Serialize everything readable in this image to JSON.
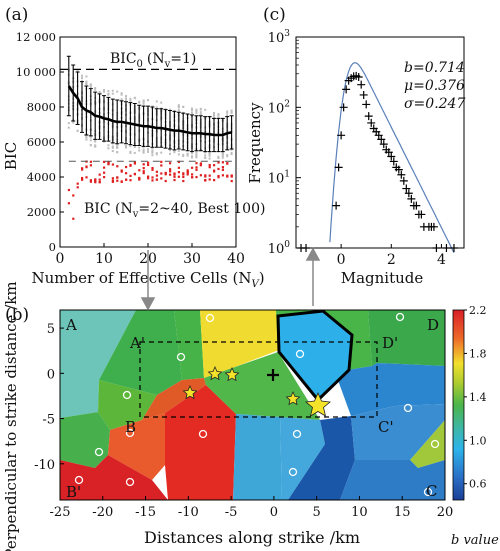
{
  "chart_data": [
    {
      "panel_label": "(a)",
      "type": "scatter",
      "xlabel": "Number of Effective Cells (N",
      "xlabel_sub": "V",
      "xlabel_end": ")",
      "ylabel": "BIC",
      "xlim": [
        0,
        40
      ],
      "ylim": [
        0,
        12000
      ],
      "xticks": [
        0,
        10,
        20,
        30,
        40
      ],
      "yticks": [
        0,
        2000,
        4000,
        6000,
        8000,
        10000,
        12000
      ],
      "ytick_labels": [
        "0",
        "2000",
        "4000",
        "6000",
        "8000",
        "10 000",
        "12 000"
      ],
      "annotations": {
        "bic0_label": "BIC",
        "bic0_sub": "0",
        "bic0_cond": "(N",
        "bic0_cond_sub": "v",
        "bic0_cond_end": "=1)",
        "best_label": "BIC (N",
        "best_sub": "v",
        "best_end": "=2~40, Best 100)"
      },
      "bic0_value": 10150,
      "best_threshold": 4900,
      "mean_series": {
        "x": [
          2,
          3,
          4,
          5,
          6,
          7,
          8,
          9,
          10,
          11,
          12,
          13,
          14,
          15,
          16,
          17,
          18,
          19,
          20,
          21,
          22,
          23,
          24,
          25,
          26,
          27,
          28,
          29,
          30,
          31,
          32,
          33,
          34,
          35,
          36,
          37,
          38,
          39
        ],
        "y": [
          9200,
          8800,
          8500,
          8000,
          7800,
          7700,
          7500,
          7450,
          7350,
          7300,
          7200,
          7150,
          7150,
          7100,
          7050,
          7000,
          6950,
          6900,
          6900,
          6850,
          6800,
          6800,
          6750,
          6700,
          6650,
          6650,
          6600,
          6550,
          6500,
          6500,
          6500,
          6450,
          6450,
          6400,
          6400,
          6400,
          6500,
          6550
        ],
        "sd": [
          1700,
          1600,
          1500,
          1450,
          1400,
          1350,
          1350,
          1300,
          1300,
          1250,
          1250,
          1250,
          1200,
          1200,
          1200,
          1200,
          1150,
          1150,
          1150,
          1150,
          1100,
          1100,
          1100,
          1100,
          1100,
          1050,
          1050,
          1050,
          1050,
          1000,
          1000,
          1000,
          1000,
          950,
          950,
          950,
          950,
          950
        ]
      }
    },
    {
      "panel_label": "(c)",
      "type": "scatter",
      "xlabel": "Magnitude",
      "ylabel": "Frequency",
      "xlim": [
        -1.8,
        4.9
      ],
      "ylim_log": [
        0,
        3
      ],
      "yscale": "log",
      "xticks": [
        0,
        2,
        4
      ],
      "yticks_exp": [
        0,
        1,
        2,
        3
      ],
      "stats": {
        "b": "b=0.714",
        "mu": "μ=0.376",
        "sigma": "σ=0.247"
      },
      "observed": {
        "x": [
          -1.6,
          -1.4,
          -0.2,
          -0.1,
          0.0,
          0.1,
          0.2,
          0.3,
          0.4,
          0.5,
          0.6,
          0.7,
          0.8,
          0.9,
          1.0,
          1.1,
          1.2,
          1.3,
          1.4,
          1.5,
          1.6,
          1.7,
          1.8,
          1.9,
          2.0,
          2.1,
          2.2,
          2.3,
          2.4,
          2.5,
          2.6,
          2.7,
          2.8,
          2.9,
          3.0,
          3.1,
          3.2,
          3.3,
          3.5,
          3.6,
          3.7,
          3.8,
          4.2,
          4.5
        ],
        "y": [
          1,
          1,
          4,
          14,
          40,
          100,
          180,
          240,
          260,
          275,
          280,
          270,
          210,
          150,
          110,
          75,
          60,
          50,
          45,
          40,
          35,
          30,
          25,
          23,
          20,
          17,
          14,
          13,
          11,
          9,
          7,
          6,
          5,
          4,
          4,
          3,
          3,
          2,
          2,
          2,
          2,
          1,
          1,
          1
        ]
      }
    },
    {
      "panel_label": "(b)",
      "type": "heatmap",
      "xlabel": "Distances along strike /km",
      "ylabel": "Perpendicular to strike distance /km",
      "xlim": [
        -25,
        20
      ],
      "ylim": [
        -14,
        7
      ],
      "xticks": [
        -25,
        -20,
        -15,
        -10,
        -5,
        0,
        5,
        10,
        15,
        20
      ],
      "yticks": [
        5,
        0,
        -5,
        -10
      ],
      "colorbar": {
        "label": "b value",
        "range": [
          0.45,
          2.2
        ],
        "ticks": [
          0.6,
          1.0,
          1.4,
          1.8,
          2.2
        ]
      },
      "corner_labels": [
        "A",
        "A'",
        "B",
        "B'",
        "C'",
        "D",
        "D'",
        "C"
      ],
      "mainshock": [
        5.5,
        -3.5
      ],
      "epicenter_cross": [
        0,
        0
      ]
    }
  ],
  "colors": {
    "gray_samples": "#bdbdbd",
    "best_samples": "#e02020",
    "curve": "#5a7fb8"
  }
}
